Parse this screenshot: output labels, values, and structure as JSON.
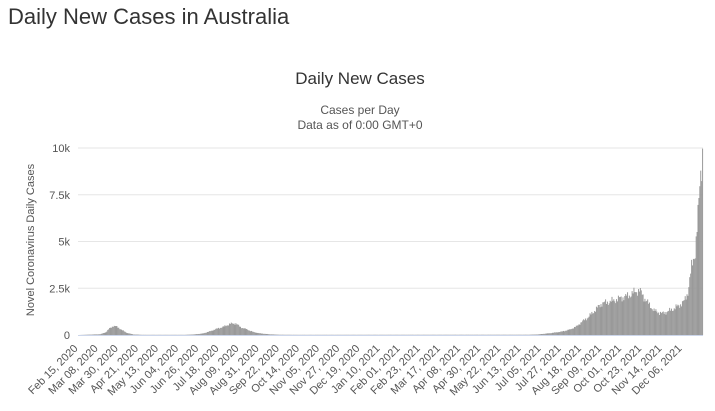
{
  "page": {
    "heading": "Daily New Cases in Australia"
  },
  "chart_data": {
    "type": "bar",
    "title": "Daily New Cases",
    "subtitle_lines": [
      "Cases per Day",
      "Data as of 0:00 GMT+0"
    ],
    "ylabel": "Novel Coronavirus Daily Cases",
    "xlabel": "",
    "ylim": [
      0,
      10000
    ],
    "yticks": [
      0,
      2500,
      5000,
      7500,
      10000
    ],
    "ytick_labels": [
      "0",
      "2.5k",
      "5k",
      "7.5k",
      "10k"
    ],
    "x_range": [
      "2020-02-15",
      "2021-12-28"
    ],
    "xtick_labels": [
      "Feb 15, 2020",
      "Mar 08, 2020",
      "Mar 30, 2020",
      "Apr 21, 2020",
      "May 13, 2020",
      "Jun 04, 2020",
      "Jun 26, 2020",
      "Jul 18, 2020",
      "Aug 09, 2020",
      "Aug 31, 2020",
      "Sep 22, 2020",
      "Oct 14, 2020",
      "Nov 05, 2020",
      "Nov 27, 2020",
      "Dec 19, 2020",
      "Jan 10, 2021",
      "Feb 01, 2021",
      "Feb 23, 2021",
      "Mar 17, 2021",
      "Apr 08, 2021",
      "Apr 30, 2021",
      "May 22, 2021",
      "Jun 13, 2021",
      "Jul 05, 2021",
      "Jul 27, 2021",
      "Aug 18, 2021",
      "Sep 09, 2021",
      "Oct 01, 2021",
      "Oct 23, 2021",
      "Nov 14, 2021",
      "Dec 06, 2021"
    ],
    "grid": true,
    "bar_color": "#999999",
    "series": [
      {
        "values": [
          {
            "date": "2020-02-15",
            "value": 0
          },
          {
            "date": "2020-03-10",
            "value": 40
          },
          {
            "date": "2020-03-16",
            "value": 150
          },
          {
            "date": "2020-03-20",
            "value": 350
          },
          {
            "date": "2020-03-24",
            "value": 480
          },
          {
            "date": "2020-03-27",
            "value": 460
          },
          {
            "date": "2020-03-30",
            "value": 380
          },
          {
            "date": "2020-04-03",
            "value": 250
          },
          {
            "date": "2020-04-08",
            "value": 110
          },
          {
            "date": "2020-04-15",
            "value": 30
          },
          {
            "date": "2020-04-25",
            "value": 10
          },
          {
            "date": "2020-06-10",
            "value": 10
          },
          {
            "date": "2020-06-20",
            "value": 30
          },
          {
            "date": "2020-06-30",
            "value": 80
          },
          {
            "date": "2020-07-08",
            "value": 200
          },
          {
            "date": "2020-07-15",
            "value": 330
          },
          {
            "date": "2020-07-22",
            "value": 430
          },
          {
            "date": "2020-07-30",
            "value": 600
          },
          {
            "date": "2020-08-05",
            "value": 620
          },
          {
            "date": "2020-08-10",
            "value": 420
          },
          {
            "date": "2020-08-17",
            "value": 300
          },
          {
            "date": "2020-08-24",
            "value": 160
          },
          {
            "date": "2020-08-31",
            "value": 90
          },
          {
            "date": "2020-09-10",
            "value": 40
          },
          {
            "date": "2020-09-22",
            "value": 15
          },
          {
            "date": "2020-10-10",
            "value": 10
          },
          {
            "date": "2021-06-20",
            "value": 15
          },
          {
            "date": "2021-07-01",
            "value": 30
          },
          {
            "date": "2021-07-15",
            "value": 100
          },
          {
            "date": "2021-07-27",
            "value": 180
          },
          {
            "date": "2021-08-05",
            "value": 290
          },
          {
            "date": "2021-08-12",
            "value": 450
          },
          {
            "date": "2021-08-18",
            "value": 700
          },
          {
            "date": "2021-08-25",
            "value": 950
          },
          {
            "date": "2021-09-01",
            "value": 1300
          },
          {
            "date": "2021-09-09",
            "value": 1700
          },
          {
            "date": "2021-09-15",
            "value": 1750
          },
          {
            "date": "2021-09-22",
            "value": 1850
          },
          {
            "date": "2021-10-01",
            "value": 2000
          },
          {
            "date": "2021-10-08",
            "value": 2100
          },
          {
            "date": "2021-10-15",
            "value": 2300
          },
          {
            "date": "2021-10-20",
            "value": 2400
          },
          {
            "date": "2021-10-28",
            "value": 1800
          },
          {
            "date": "2021-11-05",
            "value": 1300
          },
          {
            "date": "2021-11-14",
            "value": 1150
          },
          {
            "date": "2021-11-22",
            "value": 1300
          },
          {
            "date": "2021-11-28",
            "value": 1450
          },
          {
            "date": "2021-12-03",
            "value": 1600
          },
          {
            "date": "2021-12-08",
            "value": 1800
          },
          {
            "date": "2021-12-12",
            "value": 2300
          },
          {
            "date": "2021-12-16",
            "value": 3600
          },
          {
            "date": "2021-12-20",
            "value": 4500
          },
          {
            "date": "2021-12-23",
            "value": 6300
          },
          {
            "date": "2021-12-26",
            "value": 8700
          },
          {
            "date": "2021-12-28",
            "value": 9900
          }
        ]
      }
    ]
  }
}
